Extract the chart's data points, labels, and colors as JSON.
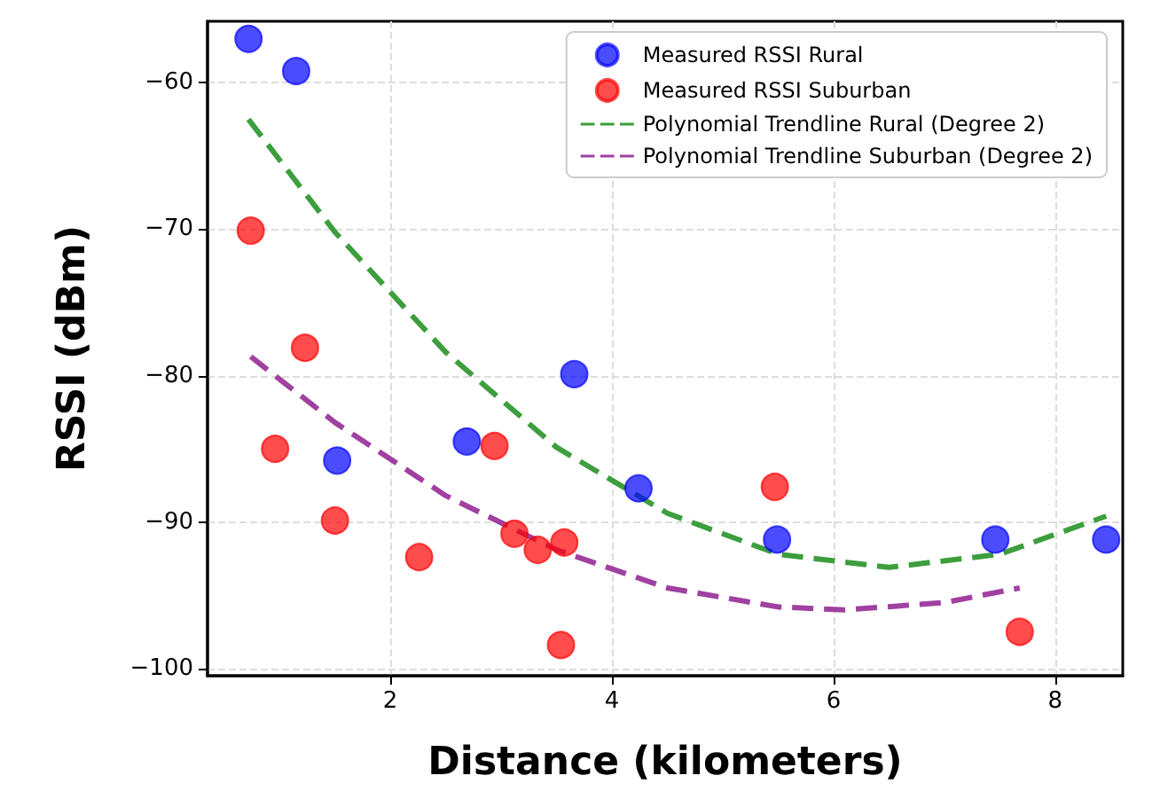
{
  "chart_data": {
    "type": "scatter",
    "xlabel": "Distance (kilometers)",
    "ylabel": "RSSI (dBm)",
    "xlim": [
      0.35,
      8.61
    ],
    "ylim": [
      -100.5,
      -55.8
    ],
    "xticks": [
      2,
      4,
      6,
      8
    ],
    "yticks": [
      {
        "value": -100,
        "label": "−100"
      },
      {
        "value": -90,
        "label": "−90"
      },
      {
        "value": -80,
        "label": "−80"
      },
      {
        "value": -70,
        "label": "−70"
      },
      {
        "value": -60,
        "label": "−60"
      }
    ],
    "grid": true,
    "legend": "top right",
    "series": [
      {
        "name": "Measured RSSI Rural",
        "marker": "circle",
        "color": "#0000ff",
        "x": [
          0.72,
          1.15,
          1.52,
          2.69,
          3.66,
          4.24,
          5.49,
          7.46,
          8.46
        ],
        "values": [
          -57.0,
          -59.2,
          -85.8,
          -84.5,
          -79.9,
          -87.7,
          -91.2,
          -91.2,
          -91.2
        ]
      },
      {
        "name": "Measured RSSI Suburban",
        "marker": "circle",
        "color": "#ff0000",
        "x": [
          0.74,
          1.23,
          0.96,
          1.5,
          2.26,
          2.94,
          3.12,
          3.33,
          3.57,
          3.54,
          5.47,
          7.68
        ],
        "values": [
          -70.1,
          -78.1,
          -85.0,
          -89.9,
          -92.4,
          -84.8,
          -90.8,
          -91.9,
          -91.4,
          -98.4,
          -87.6,
          -97.5
        ]
      },
      {
        "name": "Polynomial Trendline Rural (Degree 2)",
        "type": "line",
        "marker": "none",
        "line_style": "dashed",
        "color": "#3d9e3d",
        "x": [
          0.72,
          1.5,
          2.5,
          3.5,
          4.5,
          5.5,
          6.5,
          7.5,
          8.46
        ],
        "values": [
          -62.5,
          -70.2,
          -78.4,
          -84.9,
          -89.4,
          -92.2,
          -93.1,
          -92.2,
          -89.6
        ]
      },
      {
        "name": "Polynomial Trendline Suburban (Degree 2)",
        "type": "line",
        "marker": "none",
        "line_style": "dashed",
        "color": "#a040a0",
        "x": [
          0.74,
          1.5,
          2.5,
          3.5,
          4.5,
          5.5,
          6.1,
          7.0,
          7.68
        ],
        "values": [
          -78.7,
          -83.2,
          -88.2,
          -91.9,
          -94.5,
          -95.8,
          -96.0,
          -95.5,
          -94.5
        ]
      }
    ]
  }
}
